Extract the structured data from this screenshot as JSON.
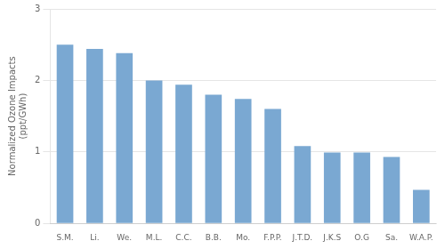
{
  "chart_data": {
    "type": "bar",
    "categories": [
      "S.M.",
      "Li.",
      "We.",
      "M.L.",
      "C.C.",
      "B.B.",
      "Mo.",
      "F.P.P.",
      "J.T.D.",
      "J.K.S",
      "O.G",
      "Sa.",
      "W.A.P."
    ],
    "values": [
      2.5,
      2.44,
      2.38,
      2.0,
      1.94,
      1.8,
      1.74,
      1.6,
      1.08,
      0.99,
      0.99,
      0.93,
      0.47
    ],
    "color": "#7aa8d2",
    "ylabel": "Normalized Ozone Impacts\n(ppt/GWh)",
    "ylim": [
      0,
      3
    ],
    "yticks": [
      0,
      1,
      2,
      3
    ],
    "grid": true
  }
}
